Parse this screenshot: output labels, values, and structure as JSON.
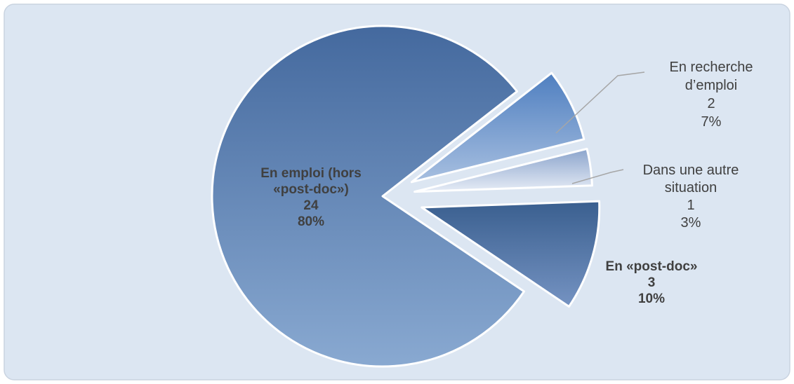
{
  "chart_data": {
    "type": "pie",
    "title": "",
    "slices": [
      {
        "label_lines": [
          "En emploi (hors",
          "«post-doc»)"
        ],
        "value": 24,
        "percent": "80%",
        "color": "#5a82b8",
        "bold": true
      },
      {
        "label_lines": [
          "En «post-doc»"
        ],
        "value": 3,
        "percent": "10%",
        "color": "#3e6594",
        "bold": true
      },
      {
        "label_lines": [
          "Dans une autre",
          "situation"
        ],
        "value": 1,
        "percent": "3%",
        "color": "#a8bddb",
        "bold": false
      },
      {
        "label_lines": [
          "En recherche",
          "d’emploi"
        ],
        "value": 2,
        "percent": "7%",
        "color": "#5c88c4",
        "bold": false
      }
    ],
    "colors": {
      "panel_bg": "#dce6f2",
      "panel_border": "#c9d3e0",
      "text": "#404040",
      "leader": "#a6a6a6"
    }
  }
}
